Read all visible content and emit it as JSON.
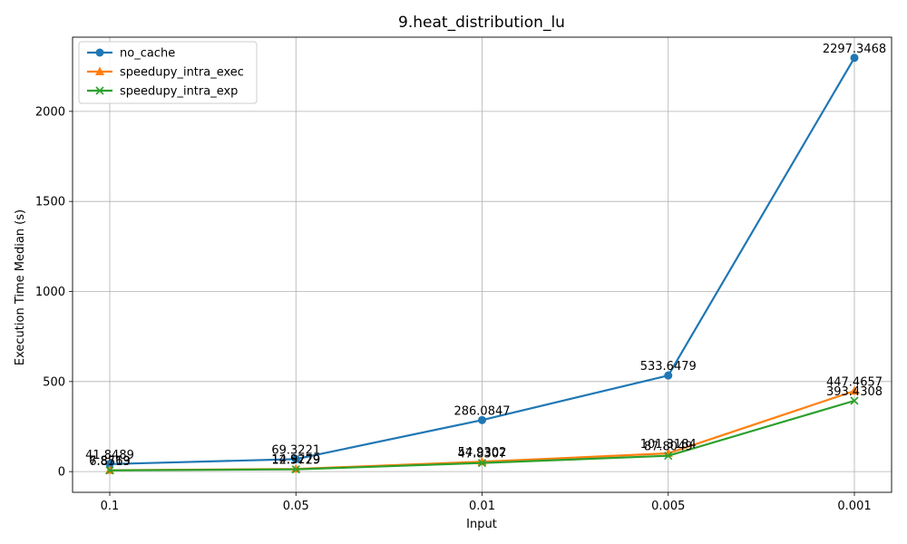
{
  "chart_data": {
    "type": "line",
    "title": "9.heat_distribution_lu",
    "xlabel": "Input",
    "ylabel": "Execution Time Median (s)",
    "categories": [
      "0.1",
      "0.05",
      "0.01",
      "0.005",
      "0.001"
    ],
    "ylim": [
      -115,
      2412
    ],
    "yticks": [
      0,
      500,
      1000,
      1500,
      2000
    ],
    "grid": true,
    "legend": "top-left",
    "series": [
      {
        "name": "no_cache",
        "color": "#1f77b4",
        "marker": "circle",
        "values": [
          41.8489,
          69.3221,
          286.0847,
          533.6479,
          2297.3468
        ],
        "labels": [
          "41.8489",
          "69.3221",
          "286.0847",
          "533.6479",
          "2297.3468"
        ]
      },
      {
        "name": "speedupy_intra_exec",
        "color": "#ff7f0e",
        "marker": "triangle",
        "values": [
          7.8769,
          14.9279,
          54.9302,
          101.3184,
          447.4657
        ],
        "labels": [
          "7.8769",
          "14.9279",
          "54.9302",
          "101.3184",
          "447.4657"
        ]
      },
      {
        "name": "speedupy_intra_exp",
        "color": "#2ca02c",
        "marker": "x",
        "values": [
          6.8513,
          12.5729,
          47.8307,
          87.8049,
          393.4308
        ],
        "labels": [
          "6.8513",
          "12.5729",
          "47.8307",
          "87.8049",
          "393.4308"
        ]
      }
    ]
  }
}
